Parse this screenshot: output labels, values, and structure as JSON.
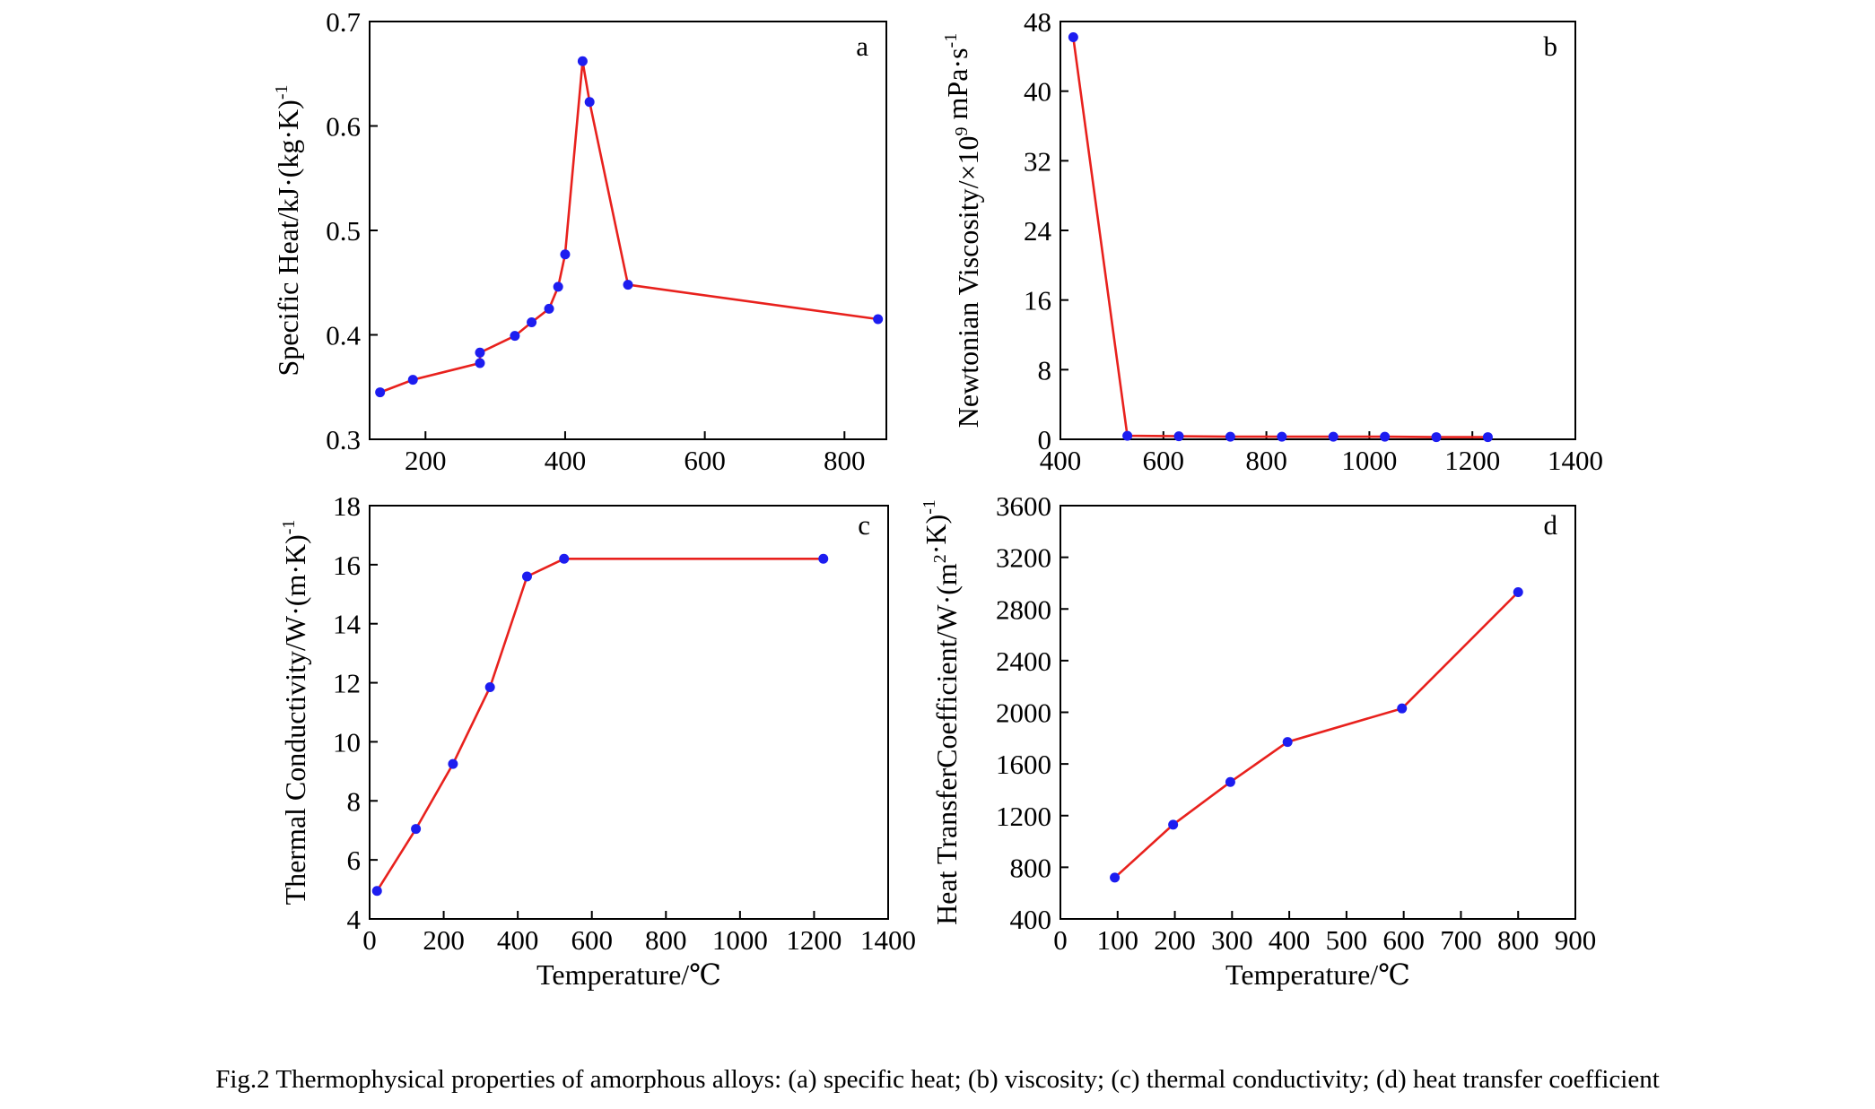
{
  "caption": "Fig.2  Thermophysical properties of amorphous alloys: (a) specific heat; (b) viscosity; (c) thermal conductivity; (d) heat transfer coefficient",
  "colors": {
    "line": "#e8211d",
    "marker": "#1d1df0",
    "axis": "#000000"
  },
  "chart_data": [
    {
      "id": "a",
      "type": "line",
      "panel_label": "a",
      "xlabel": "",
      "ylabel_parts": {
        "base": "Specific Heat/kJ·(kg·K)",
        "sup": "-1"
      },
      "xlim": [
        120,
        860
      ],
      "ylim": [
        0.3,
        0.7
      ],
      "xticks": [
        200,
        400,
        600,
        800
      ],
      "yticks": [
        0.3,
        0.4,
        0.5,
        0.6,
        0.7
      ],
      "ytick_labels": [
        "0.3",
        "0.4",
        "0.5",
        "0.6",
        "0.7"
      ],
      "x": [
        135,
        182,
        278,
        278,
        328,
        352,
        377,
        390,
        400,
        425,
        435,
        490,
        848
      ],
      "y": [
        0.345,
        0.357,
        0.373,
        0.383,
        0.399,
        0.412,
        0.425,
        0.446,
        0.477,
        0.662,
        0.623,
        0.448,
        0.415
      ]
    },
    {
      "id": "b",
      "type": "line",
      "panel_label": "b",
      "xlabel": "",
      "ylabel_parts": {
        "base": "Newtonian Viscosity/×10",
        "sup1": "9",
        "mid": " mPa·s",
        "sup2": "-1"
      },
      "xlim": [
        400,
        1400
      ],
      "ylim": [
        0,
        48
      ],
      "xticks": [
        400,
        600,
        800,
        1000,
        1200,
        1400
      ],
      "yticks": [
        0,
        8,
        16,
        24,
        32,
        40,
        48
      ],
      "ytick_labels": [
        "0",
        "8",
        "16",
        "24",
        "32",
        "40",
        "48"
      ],
      "x": [
        425,
        530,
        630,
        730,
        830,
        930,
        1030,
        1130,
        1230
      ],
      "y": [
        46.2,
        0.4,
        0.35,
        0.3,
        0.3,
        0.3,
        0.3,
        0.25,
        0.25
      ]
    },
    {
      "id": "c",
      "type": "line",
      "panel_label": "c",
      "xlabel": "Temperature/℃",
      "ylabel_parts": {
        "base": "Thermal Conductivity/W·(m·K)",
        "sup": "-1"
      },
      "xlim": [
        0,
        1400
      ],
      "ylim": [
        4,
        18
      ],
      "xticks": [
        0,
        200,
        400,
        600,
        800,
        1000,
        1200,
        1400
      ],
      "yticks": [
        4,
        6,
        8,
        10,
        12,
        14,
        16,
        18
      ],
      "ytick_labels": [
        "4",
        "6",
        "8",
        "10",
        "12",
        "14",
        "16",
        "18"
      ],
      "x": [
        20,
        125,
        225,
        325,
        425,
        525,
        1225
      ],
      "y": [
        4.95,
        7.05,
        9.25,
        11.85,
        15.6,
        16.2,
        16.2
      ]
    },
    {
      "id": "d",
      "type": "line",
      "panel_label": "d",
      "xlabel": "Temperature/℃",
      "ylabel_parts": {
        "base": "Heat TransferCoefficient/W·(m",
        "sup1": "2",
        "mid": "·K)",
        "sup2": "-1"
      },
      "xlim": [
        0,
        900
      ],
      "ylim": [
        400,
        3600
      ],
      "xticks": [
        0,
        100,
        200,
        300,
        400,
        500,
        600,
        700,
        800,
        900
      ],
      "yticks": [
        400,
        800,
        1200,
        1600,
        2000,
        2400,
        2800,
        3200,
        3600
      ],
      "ytick_labels": [
        "400",
        "800",
        "1200",
        "1600",
        "2000",
        "2400",
        "2800",
        "3200",
        "3600"
      ],
      "x": [
        95,
        197,
        297,
        397,
        597,
        800
      ],
      "y": [
        720,
        1130,
        1460,
        1770,
        2030,
        2930
      ]
    }
  ]
}
